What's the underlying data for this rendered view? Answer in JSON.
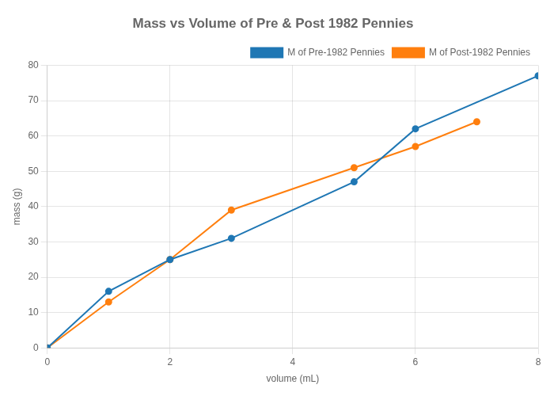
{
  "chart_data": {
    "type": "line",
    "title": "Mass vs Volume of Pre & Post 1982 Pennies",
    "xlabel": "volume (mL)",
    "ylabel": "mass (g)",
    "series": [
      {
        "name": "M of Pre-1982 Pennies",
        "color": "#1f77b4",
        "marker": "circle",
        "x": [
          0,
          1,
          2,
          3,
          5,
          6,
          8
        ],
        "values": [
          0,
          16,
          25,
          31,
          47,
          62,
          77
        ]
      },
      {
        "name": "M of Post-1982 Pennies",
        "color": "#ff7f0e",
        "marker": "circle",
        "x": [
          0,
          1,
          2,
          3,
          5,
          6,
          7
        ],
        "values": [
          0,
          13,
          25,
          39,
          51,
          57,
          64
        ]
      }
    ],
    "xlim": [
      0,
      8
    ],
    "ylim": [
      0,
      80
    ],
    "xticks": [
      0,
      2,
      4,
      6,
      8
    ],
    "yticks": [
      0,
      10,
      20,
      30,
      40,
      50,
      60,
      70,
      80
    ],
    "grid": true,
    "legend": "upper right"
  }
}
